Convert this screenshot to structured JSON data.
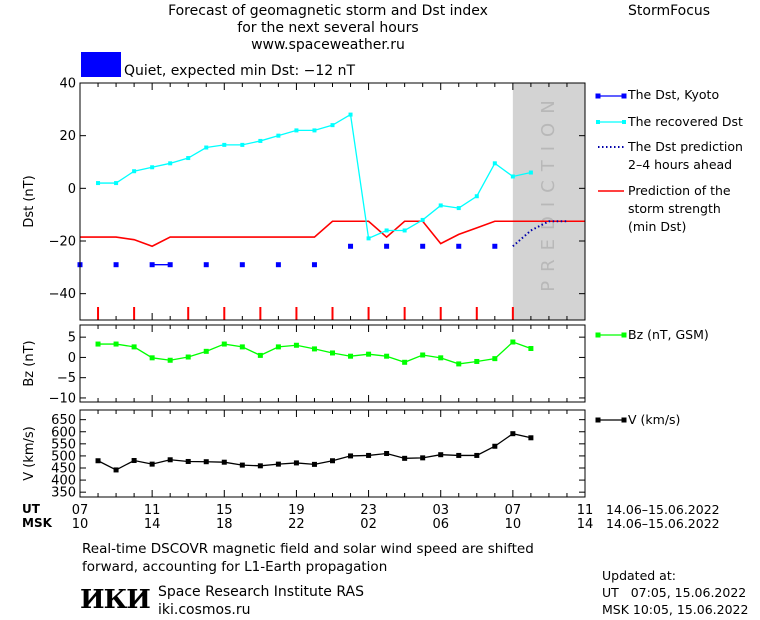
{
  "header": {
    "title_line1": "Forecast of geomagnetic storm and Dst index",
    "title_line2": "for the next several hours",
    "title_line3": "www.spaceweather.ru",
    "brand": "StormFocus",
    "status_text": "Quiet, expected min Dst: −12 nT",
    "status_color": "#0000ff"
  },
  "legend": {
    "dst_kyoto": "The Dst, Kyoto",
    "recovered_dst": "The recovered Dst",
    "dst_prediction": [
      "The Dst prediction",
      "2–4 hours ahead"
    ],
    "storm_strength": [
      "Prediction of the",
      "storm strength",
      "(min Dst)"
    ],
    "bz": "Bz (nT, GSM)",
    "v": "V (km/s)"
  },
  "xaxis": {
    "ut_label": "UT",
    "msk_label": "MSK",
    "ut_ticks": [
      "07",
      "11",
      "15",
      "19",
      "23",
      "03",
      "07",
      "11"
    ],
    "msk_ticks": [
      "10",
      "14",
      "18",
      "22",
      "02",
      "06",
      "10",
      "14"
    ],
    "ut_range": "14.06–15.06.2022",
    "msk_range": "14.06–15.06.2022"
  },
  "footer": {
    "note_line1": "Real-time DSCOVR magnetic field and solar wind speed are shifted",
    "note_line2": "forward, accounting for L1-Earth propagation",
    "logo": "ИКИ",
    "institute": "Space Research Institute RAS",
    "site": "iki.cosmos.ru",
    "updated_label": "Updated at:",
    "updated_ut": "UT   07:05, 15.06.2022",
    "updated_msk": "MSK 10:05, 15.06.2022"
  },
  "colors": {
    "dst_kyoto": "#0000ff",
    "recovered": "#00ffff",
    "prediction": "#0000aa",
    "storm": "#ff0000",
    "bz": "#00ff00",
    "v": "#000000",
    "prediction_band": "#d3d3d3"
  },
  "chart_data": [
    {
      "type": "line",
      "panel": "dst",
      "ylabel": "Dst (nT)",
      "ylim": [
        -50,
        40
      ],
      "yticks": [
        40,
        20,
        0,
        -20,
        -40
      ],
      "x_unit": "hours from 07 UT 14.06.2022",
      "xlim": [
        0,
        28
      ],
      "prediction_band": [
        24,
        28
      ],
      "prediction_band_label": "PREDICTION",
      "series": [
        {
          "name": "The Dst, Kyoto",
          "style": "markers",
          "x": [
            0,
            2,
            4,
            5,
            7,
            9,
            11,
            13,
            15,
            17,
            19,
            21,
            23
          ],
          "y": [
            -29,
            -29,
            -29,
            -29,
            -29,
            -29,
            -29,
            -29,
            -22,
            -22,
            -22,
            -22,
            -22
          ]
        },
        {
          "name": "The recovered Dst",
          "style": "line-markers",
          "x": [
            1,
            2,
            3,
            4,
            5,
            6,
            7,
            8,
            9,
            10,
            11,
            12,
            13,
            14,
            15,
            16,
            17,
            18,
            19,
            20,
            21,
            22,
            23,
            24,
            25
          ],
          "y": [
            2,
            2,
            6.5,
            8,
            9.5,
            11.5,
            15.5,
            16.5,
            16.5,
            18,
            20,
            22,
            22,
            24,
            28,
            -19,
            -16,
            -16,
            -12,
            -6.5,
            -7.5,
            -3,
            9.5,
            4.5,
            6
          ]
        },
        {
          "name": "The Dst prediction 2–4 hours ahead",
          "style": "dotted",
          "x": [
            24,
            25,
            26,
            27
          ],
          "y": [
            -22,
            -16,
            -12.5,
            -12.5
          ]
        },
        {
          "name": "Prediction of the storm strength (min Dst)",
          "style": "line",
          "x": [
            -1,
            0,
            1,
            2,
            3,
            4,
            5,
            13,
            14,
            15,
            16,
            17,
            18,
            19,
            20,
            21,
            22,
            23,
            24,
            25,
            29
          ],
          "y": [
            -18.5,
            -18.5,
            -18.5,
            -18.5,
            -19.5,
            -22,
            -18.5,
            -18.5,
            -12.5,
            -12.5,
            -12.5,
            -18.5,
            -12.5,
            -12.5,
            -21,
            -17.5,
            -15,
            -12.5,
            -12.5,
            -12.5,
            -12.5
          ]
        }
      ],
      "storm_ticks_x": [
        1,
        3,
        6,
        8,
        10,
        12,
        14,
        16,
        18,
        20,
        22,
        24
      ]
    },
    {
      "type": "line",
      "panel": "bz",
      "ylabel": "Bz (nT)",
      "ylim": [
        -11,
        8
      ],
      "yticks": [
        5,
        0,
        -5,
        -10
      ],
      "xlim": [
        0,
        28
      ],
      "series": [
        {
          "name": "Bz (nT, GSM)",
          "x": [
            1,
            2,
            3,
            4,
            5,
            6,
            7,
            8,
            9,
            10,
            11,
            12,
            13,
            14,
            15,
            16,
            17,
            18,
            19,
            20,
            21,
            22,
            23,
            24,
            25
          ],
          "y": [
            3.3,
            3.3,
            2.6,
            -0.1,
            -0.7,
            0.1,
            1.5,
            3.3,
            2.6,
            0.5,
            2.6,
            3.0,
            2.1,
            1.1,
            0.3,
            0.8,
            0.3,
            -1.2,
            0.6,
            -0.1,
            -1.6,
            -1.0,
            -0.3,
            3.8,
            2.2
          ]
        }
      ]
    },
    {
      "type": "line",
      "panel": "v",
      "ylabel": "V (km/s)",
      "ylim": [
        330,
        690
      ],
      "yticks": [
        650,
        600,
        550,
        500,
        450,
        400,
        350
      ],
      "xlim": [
        0,
        28
      ],
      "series": [
        {
          "name": "V (km/s)",
          "x": [
            1,
            2,
            3,
            4,
            5,
            6,
            7,
            8,
            9,
            10,
            11,
            12,
            13,
            14,
            15,
            16,
            17,
            18,
            19,
            20,
            21,
            22,
            23,
            24,
            25
          ],
          "y": [
            480,
            442,
            481,
            466,
            484,
            477,
            476,
            474,
            462,
            459,
            466,
            471,
            465,
            480,
            500,
            502,
            510,
            490,
            492,
            505,
            502,
            502,
            540,
            592,
            575
          ]
        }
      ]
    }
  ]
}
